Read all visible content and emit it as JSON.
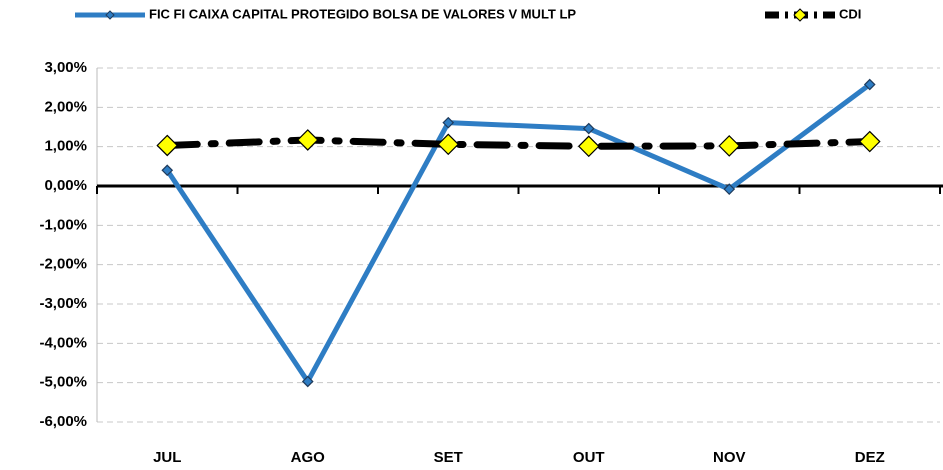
{
  "chart_data": {
    "type": "line",
    "categories": [
      "JUL",
      "AGO",
      "SET",
      "OUT",
      "NOV",
      "DEZ"
    ],
    "series": [
      {
        "name": "FIC FI CAIXA CAPITAL PROTEGIDO BOLSA DE VALORES V MULT LP",
        "color": "#2e7dc4",
        "values": [
          0.4,
          -4.97,
          1.61,
          1.46,
          -0.08,
          2.58
        ]
      },
      {
        "name": "CDI",
        "color": "#000000",
        "values": [
          1.03,
          1.17,
          1.06,
          1.01,
          1.02,
          1.13
        ]
      }
    ],
    "ylim": [
      -6,
      3
    ],
    "yticks": [
      {
        "value": 3,
        "label": "3,00%"
      },
      {
        "value": 2,
        "label": "2,00%"
      },
      {
        "value": 1,
        "label": "1,00%"
      },
      {
        "value": 0,
        "label": "0,00%"
      },
      {
        "value": -1,
        "label": "-1,00%"
      },
      {
        "value": -2,
        "label": "-2,00%"
      },
      {
        "value": -3,
        "label": "-3,00%"
      },
      {
        "value": -4,
        "label": "-4,00%"
      },
      {
        "value": -5,
        "label": "-5,00%"
      },
      {
        "value": -6,
        "label": "-6,00%"
      }
    ],
    "grid": true,
    "legend": "top"
  }
}
